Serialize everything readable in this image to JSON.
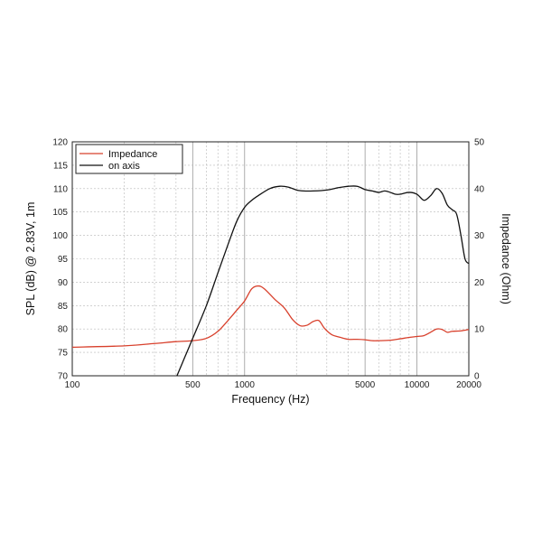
{
  "chart_data": {
    "type": "line",
    "xlabel": "Frequency (Hz)",
    "ylabel": "SPL (dB) @ 2.83V, 1m",
    "y2label": "Impedance (Ohm)",
    "x_scale": "log",
    "xlim": [
      100,
      20000
    ],
    "ylim": [
      70,
      120
    ],
    "y2lim": [
      0,
      50
    ],
    "x_ticks": [
      100,
      500,
      1000,
      5000,
      10000,
      20000
    ],
    "x_tick_labels": [
      "100",
      "500",
      "1000",
      "5000",
      "10000",
      "20000"
    ],
    "y_ticks": [
      70,
      75,
      80,
      85,
      90,
      95,
      100,
      105,
      110,
      115,
      120
    ],
    "y2_ticks": [
      0,
      10,
      20,
      30,
      40,
      50
    ],
    "grid": true,
    "legend_position": "top-left",
    "series": [
      {
        "name": "Impedance",
        "axis": "right",
        "color": "#d8402c",
        "x": [
          100,
          200,
          300,
          400,
          500,
          600,
          700,
          800,
          900,
          1000,
          1100,
          1200,
          1300,
          1500,
          1700,
          1900,
          2100,
          2300,
          2500,
          2700,
          2900,
          3200,
          3600,
          4000,
          4500,
          5000,
          5500,
          6000,
          7000,
          8000,
          9000,
          10000,
          11000,
          12000,
          13000,
          14000,
          15000,
          16000,
          18000,
          20000
        ],
        "values": [
          6.1,
          6.4,
          6.9,
          7.3,
          7.5,
          8.0,
          9.5,
          11.8,
          14.0,
          16.0,
          18.6,
          19.2,
          18.6,
          16.3,
          14.5,
          12.0,
          10.7,
          10.8,
          11.6,
          11.8,
          10.2,
          8.8,
          8.2,
          7.8,
          7.8,
          7.7,
          7.5,
          7.5,
          7.6,
          7.9,
          8.2,
          8.4,
          8.6,
          9.3,
          10.0,
          9.9,
          9.3,
          9.5,
          9.6,
          9.9
        ]
      },
      {
        "name": "on axis",
        "axis": "left",
        "color": "#111111",
        "x": [
          405,
          450,
          500,
          600,
          700,
          800,
          900,
          1000,
          1100,
          1200,
          1400,
          1600,
          1800,
          2000,
          2200,
          2500,
          3000,
          3500,
          4000,
          4500,
          5000,
          5500,
          6000,
          6500,
          7000,
          7500,
          8000,
          9000,
          10000,
          11000,
          12000,
          13000,
          14000,
          15000,
          16000,
          17000,
          18000,
          19000,
          20000
        ],
        "values": [
          70,
          74,
          78,
          85,
          92,
          98,
          103,
          106,
          107.5,
          108.5,
          110,
          110.5,
          110.3,
          109.7,
          109.5,
          109.5,
          109.7,
          110.2,
          110.5,
          110.5,
          109.8,
          109.5,
          109.2,
          109.5,
          109.2,
          108.8,
          108.8,
          109.2,
          108.8,
          107.5,
          108.5,
          110.0,
          109.0,
          106.5,
          105.5,
          104.5,
          100.0,
          95.0,
          94.0
        ]
      }
    ]
  }
}
